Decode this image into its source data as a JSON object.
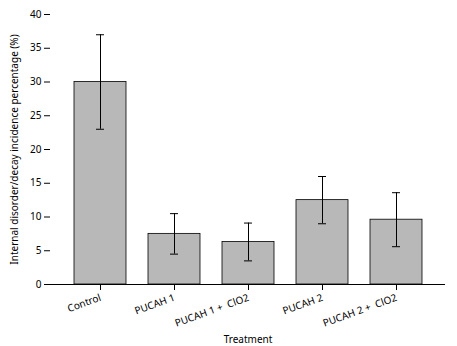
{
  "chart_data": {
    "type": "bar",
    "categories": [
      "Control",
      "PUCAH 1",
      "PUCAH 1 +  ClO2",
      "PUCAH 2",
      "PUCAH 2 +  ClO2"
    ],
    "values": [
      30.0,
      7.5,
      6.3,
      12.5,
      9.6
    ],
    "errors": [
      7.0,
      3.0,
      2.8,
      3.5,
      4.0
    ],
    "color": "#b8b8b8",
    "ylabel": "Internal disorder/decay incidence percentage (%)",
    "xlabel": "Treatment",
    "ylim": [
      0,
      40
    ],
    "yticks": [
      0,
      5,
      10,
      15,
      20,
      25,
      30,
      35,
      40
    ]
  }
}
